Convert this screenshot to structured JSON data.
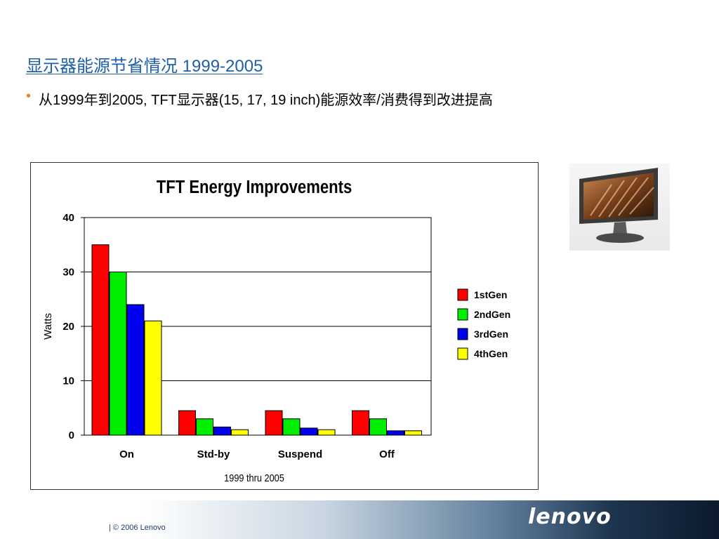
{
  "slide": {
    "title": "显示器能源节省情况 1999-2005",
    "bullet": "从1999年到2005, TFT显示器(15, 17, 19 inch)能源效率/消费得到改进提高"
  },
  "footer": {
    "copyright": "| © 2006 Lenovo",
    "logo_text": "lenovo"
  },
  "chart_data": {
    "type": "bar",
    "title": "TFT Energy Improvements",
    "xlabel": "1999 thru 2005",
    "ylabel": "Watts",
    "categories": [
      "On",
      "Std-by",
      "Suspend",
      "Off"
    ],
    "ylim": [
      0,
      40
    ],
    "yticks": [
      0,
      10,
      20,
      30,
      40
    ],
    "grid": true,
    "legend_position": "right",
    "series": [
      {
        "name": "1stGen",
        "color": "#ff0000",
        "values": [
          35,
          4.5,
          4.5,
          4.5
        ]
      },
      {
        "name": "2ndGen",
        "color": "#00ee00",
        "values": [
          30,
          3,
          3,
          3
        ]
      },
      {
        "name": "3rdGen",
        "color": "#0000ee",
        "values": [
          24,
          1.5,
          1.3,
          0.8
        ]
      },
      {
        "name": "4thGen",
        "color": "#ffff00",
        "values": [
          21,
          1,
          1,
          0.8
        ]
      }
    ]
  }
}
